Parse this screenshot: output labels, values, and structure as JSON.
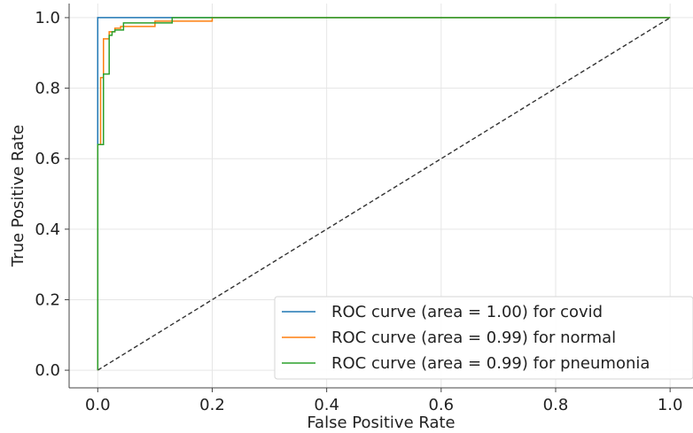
{
  "chart_data": {
    "type": "line",
    "xlabel": "False Positive Rate",
    "ylabel": "True Positive Rate",
    "xlim": [
      -0.05,
      1.04
    ],
    "ylim": [
      -0.05,
      1.04
    ],
    "xticks": [
      "0.0",
      "0.2",
      "0.4",
      "0.6",
      "0.8",
      "1.0"
    ],
    "yticks": [
      "0.0",
      "0.2",
      "0.4",
      "0.6",
      "0.8",
      "1.0"
    ],
    "grid": true,
    "legend_position": "lower right",
    "series": [
      {
        "name": "ROC curve (area = 1.00) for covid",
        "color": "#1f77b4",
        "x": [
          0,
          0,
          0,
          0.13,
          0.13,
          1
        ],
        "y": [
          0,
          0.83,
          1.0,
          1.0,
          1.0,
          1.0
        ]
      },
      {
        "name": "ROC curve (area = 0.99) for normal",
        "color": "#ff7f0e",
        "x": [
          0,
          0,
          0.005,
          0.005,
          0.01,
          0.01,
          0.02,
          0.02,
          0.03,
          0.03,
          0.04,
          0.04,
          0.1,
          0.1,
          0.2,
          0.2,
          1
        ],
        "y": [
          0,
          0.64,
          0.64,
          0.83,
          0.83,
          0.94,
          0.94,
          0.96,
          0.96,
          0.97,
          0.97,
          0.975,
          0.975,
          0.99,
          0.99,
          1.0,
          1.0
        ]
      },
      {
        "name": "ROC curve (area = 0.99) for pneumonia",
        "color": "#2ca02c",
        "x": [
          0,
          0,
          0.01,
          0.01,
          0.02,
          0.02,
          0.025,
          0.025,
          0.03,
          0.03,
          0.045,
          0.045,
          0.13,
          0.13,
          1
        ],
        "y": [
          0,
          0.64,
          0.64,
          0.84,
          0.84,
          0.95,
          0.95,
          0.96,
          0.96,
          0.965,
          0.965,
          0.985,
          0.985,
          1.0,
          1.0
        ]
      },
      {
        "color": "#333333",
        "dashed": true,
        "x": [
          0,
          1
        ],
        "y": [
          0,
          1
        ]
      }
    ]
  }
}
